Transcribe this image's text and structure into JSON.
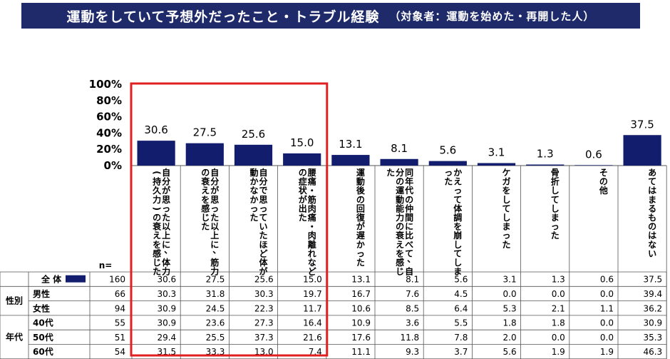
{
  "title": "運動をしていて予想外だったこと・トラブル経験",
  "subtitle": "（対象者：運動を始めた・再開した人）",
  "n_label": "n=",
  "colors": {
    "bar": "#131d6e",
    "title_bg": "#1f2a6b",
    "highlight": "#e02020"
  },
  "chart_data": {
    "type": "bar",
    "ylim": [
      0,
      100
    ],
    "yticks": [
      "100%",
      "80%",
      "60%",
      "40%",
      "20%",
      "0%"
    ],
    "categories": [
      "自分が思った以上に、体力（持久力）の衰えを感じた",
      "自分が思った以上に、筋力の衰えを感じた",
      "自分で思っていたほど体が動かなかった",
      "腰痛・筋肉痛・肉離れなどの症状が出た",
      "運動後の回復が遅かった",
      "同年代の仲間に比べて、自分の運動能力の衰えを感じた",
      "かえって体調を崩してしまった",
      "ケガをしてしまった",
      "骨折してしまった",
      "その他",
      "あてはまるものはない"
    ],
    "values": [
      30.6,
      27.5,
      25.6,
      15.0,
      13.1,
      8.1,
      5.6,
      3.1,
      1.3,
      0.6,
      37.5
    ],
    "value_labels": [
      "30.6",
      "27.5",
      "25.6",
      "15.0",
      "13.1",
      "8.1",
      "5.6",
      "3.1",
      "1.3",
      "0.6",
      "37.5"
    ],
    "highlighted_categories": [
      0,
      1,
      2,
      3
    ],
    "table": {
      "rows": [
        {
          "group": "",
          "label": "全 体",
          "legend": true,
          "n": "160",
          "values": [
            "30.6",
            "27.5",
            "25.6",
            "15.0",
            "13.1",
            "8.1",
            "5.6",
            "3.1",
            "1.3",
            "0.6",
            "37.5"
          ]
        },
        {
          "group": "性別",
          "label": "男性",
          "n": "66",
          "values": [
            "30.3",
            "31.8",
            "30.3",
            "19.7",
            "16.7",
            "7.6",
            "4.5",
            "0.0",
            "0.0",
            "0.0",
            "39.4"
          ]
        },
        {
          "group": "",
          "label": "女性",
          "n": "94",
          "values": [
            "30.9",
            "24.5",
            "22.3",
            "11.7",
            "10.6",
            "8.5",
            "6.4",
            "5.3",
            "2.1",
            "1.1",
            "36.2"
          ]
        },
        {
          "group": "年代",
          "label": "40代",
          "n": "55",
          "values": [
            "30.9",
            "23.6",
            "27.3",
            "16.4",
            "10.9",
            "3.6",
            "5.5",
            "1.8",
            "1.8",
            "0.0",
            "30.9"
          ]
        },
        {
          "group": "",
          "label": "50代",
          "n": "51",
          "values": [
            "29.4",
            "25.5",
            "37.3",
            "21.6",
            "17.6",
            "11.8",
            "7.8",
            "2.0",
            "0.0",
            "0.0",
            "35.3"
          ]
        },
        {
          "group": "",
          "label": "60代",
          "n": "54",
          "values": [
            "31.5",
            "33.3",
            "13.0",
            "7.4",
            "11.1",
            "9.3",
            "3.7",
            "5.6",
            "1.9",
            "1.9",
            "46.3"
          ]
        }
      ]
    }
  }
}
